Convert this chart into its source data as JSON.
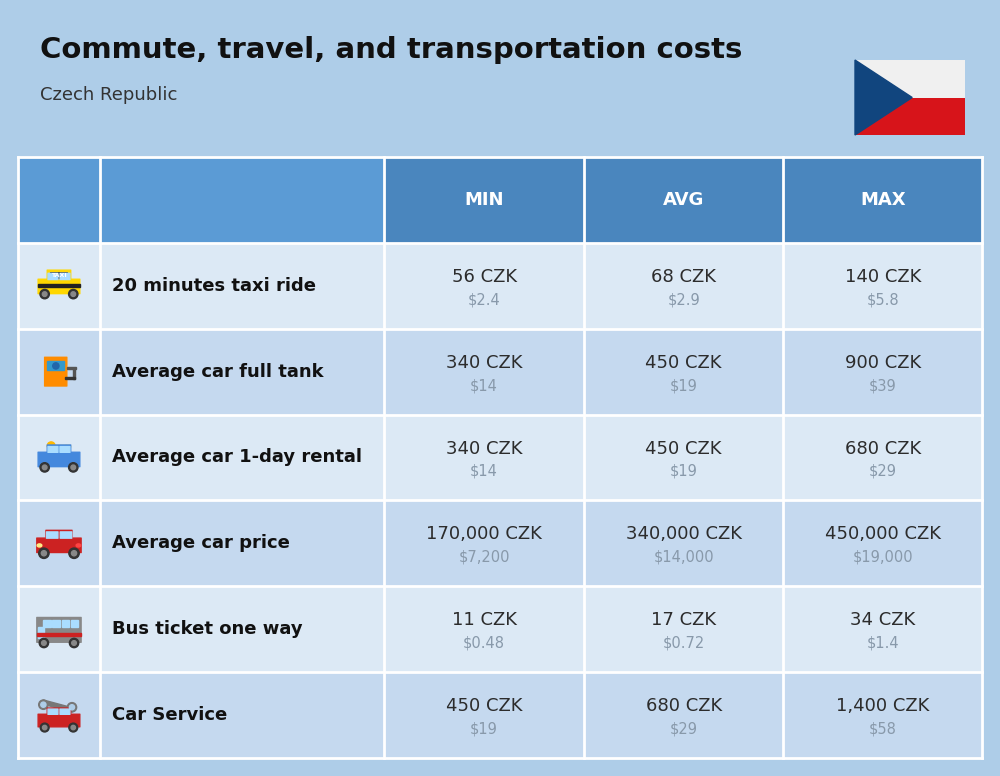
{
  "title": "Commute, travel, and transportation costs",
  "subtitle": "Czech Republic",
  "background_color": "#aecde8",
  "header_bg_color_dark": "#4a86be",
  "header_bg_color_light": "#5b9bd5",
  "header_text_color": "#ffffff",
  "row_bg_color_1": "#dce9f5",
  "row_bg_color_2": "#c5d9ef",
  "cell_text_color": "#2c2c2c",
  "usd_text_color": "#8899aa",
  "label_text_color": "#111111",
  "flag_white": "#f0f0f0",
  "flag_red": "#d7141a",
  "flag_blue": "#11457e",
  "col_headers": [
    "MIN",
    "AVG",
    "MAX"
  ],
  "rows": [
    {
      "label": "20 minutes taxi ride",
      "min_czk": "56 CZK",
      "min_usd": "$2.4",
      "avg_czk": "68 CZK",
      "avg_usd": "$2.9",
      "max_czk": "140 CZK",
      "max_usd": "$5.8"
    },
    {
      "label": "Average car full tank",
      "min_czk": "340 CZK",
      "min_usd": "$14",
      "avg_czk": "450 CZK",
      "avg_usd": "$19",
      "max_czk": "900 CZK",
      "max_usd": "$39"
    },
    {
      "label": "Average car 1-day rental",
      "min_czk": "340 CZK",
      "min_usd": "$14",
      "avg_czk": "450 CZK",
      "avg_usd": "$19",
      "max_czk": "680 CZK",
      "max_usd": "$29"
    },
    {
      "label": "Average car price",
      "min_czk": "170,000 CZK",
      "min_usd": "$7,200",
      "avg_czk": "340,000 CZK",
      "avg_usd": "$14,000",
      "max_czk": "450,000 CZK",
      "max_usd": "$19,000"
    },
    {
      "label": "Bus ticket one way",
      "min_czk": "11 CZK",
      "min_usd": "$0.48",
      "avg_czk": "17 CZK",
      "avg_usd": "$0.72",
      "max_czk": "34 CZK",
      "max_usd": "$1.4"
    },
    {
      "label": "Car Service",
      "min_czk": "450 CZK",
      "min_usd": "$19",
      "avg_czk": "680 CZK",
      "avg_usd": "$29",
      "max_czk": "1,400 CZK",
      "max_usd": "$58"
    }
  ],
  "title_fontsize": 21,
  "subtitle_fontsize": 13,
  "header_fontsize": 13,
  "label_fontsize": 13,
  "value_fontsize": 13,
  "usd_fontsize": 10.5
}
